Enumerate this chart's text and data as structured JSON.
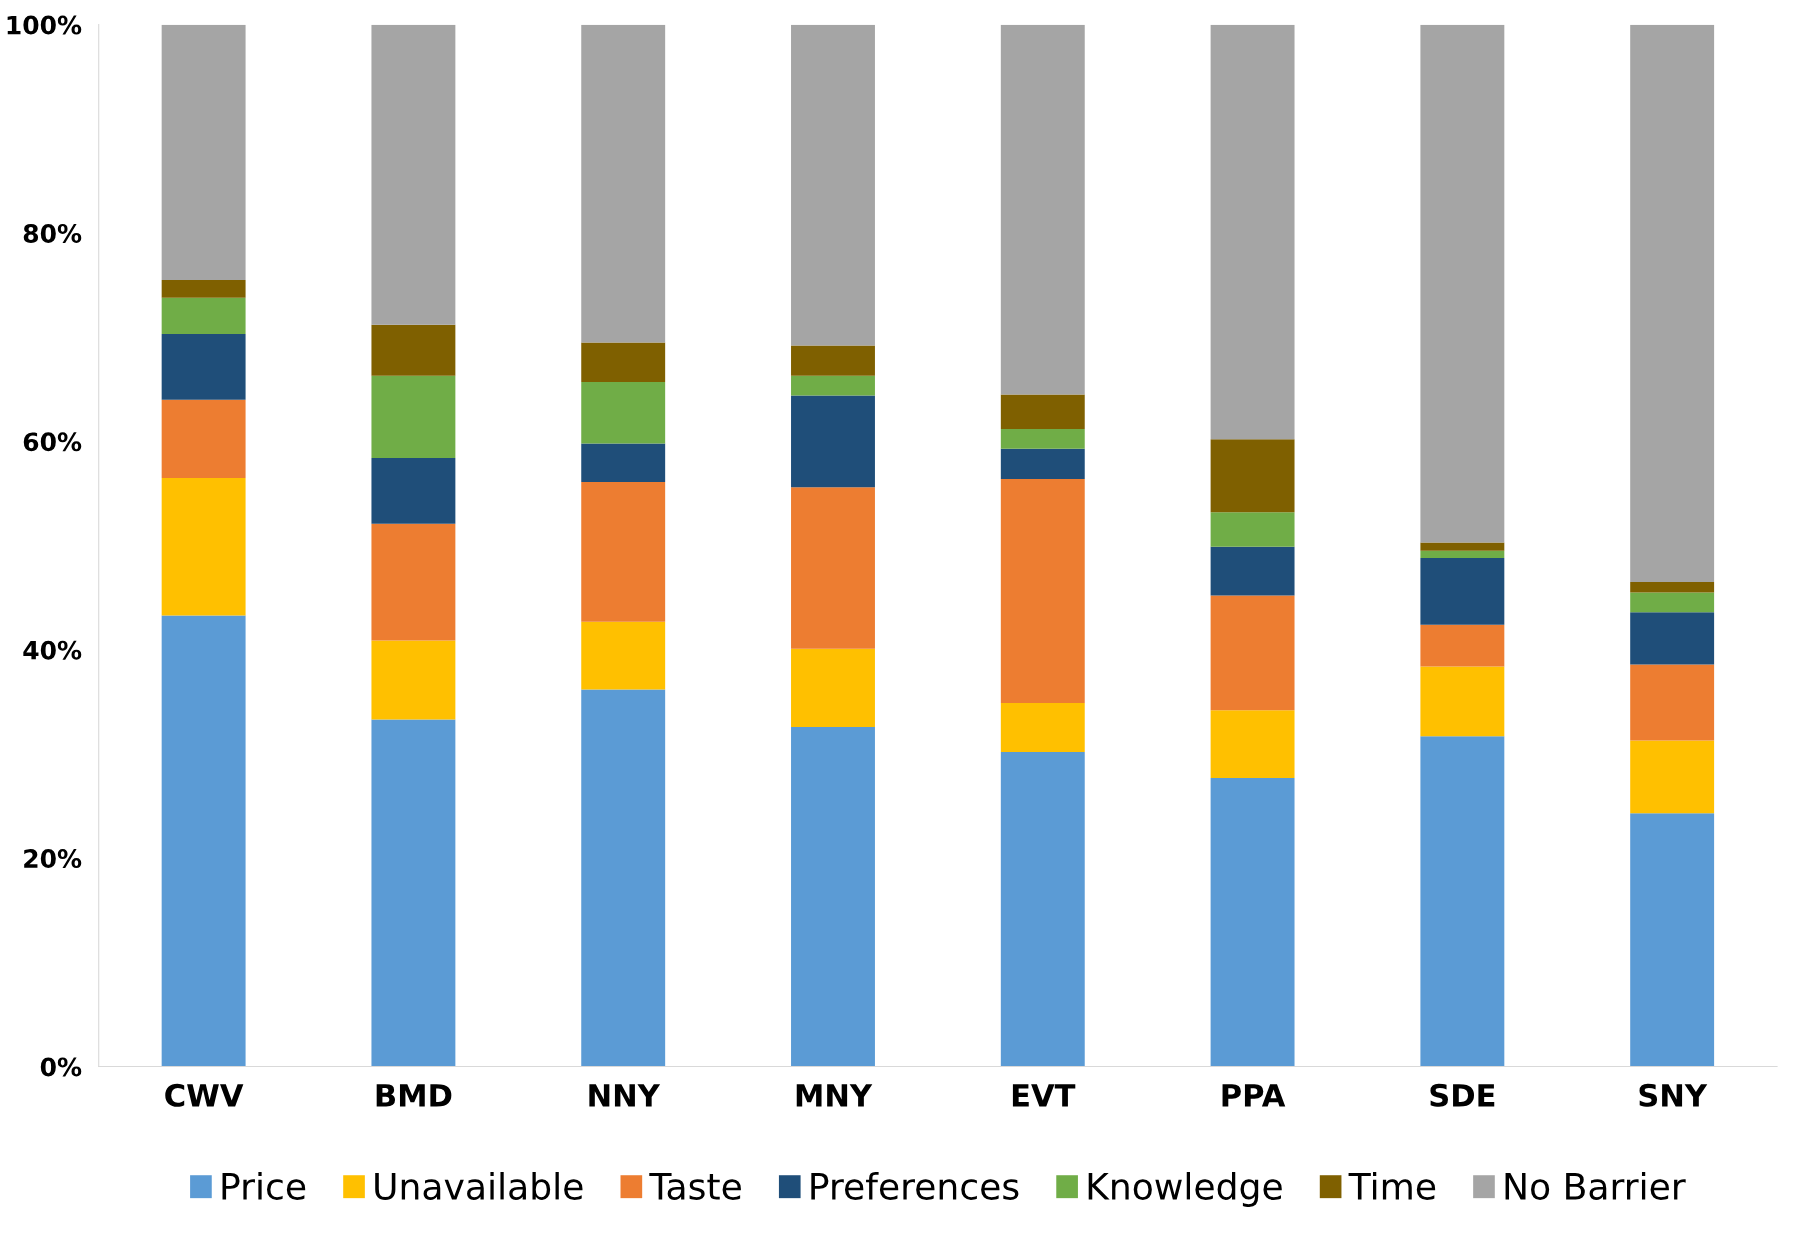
{
  "chart_data": {
    "type": "bar",
    "stacked": true,
    "categories": [
      "CWV",
      "BMD",
      "NNY",
      "MNY",
      "EVT",
      "PPA",
      "SDE",
      "SNY"
    ],
    "series": [
      {
        "name": "Price",
        "color": "#5b9bd5",
        "values": [
          43.3,
          33.3,
          36.2,
          32.6,
          30.2,
          27.7,
          31.7,
          24.3
        ]
      },
      {
        "name": "Unavailable",
        "color": "#ffc000",
        "values": [
          13.2,
          7.6,
          6.5,
          7.5,
          4.7,
          6.5,
          6.7,
          7.0
        ]
      },
      {
        "name": "Taste",
        "color": "#ed7d31",
        "values": [
          7.5,
          11.2,
          13.4,
          15.5,
          21.5,
          11.0,
          4.0,
          7.3
        ]
      },
      {
        "name": "Preferences",
        "color": "#1f4e79",
        "values": [
          6.3,
          6.3,
          3.7,
          8.8,
          2.9,
          4.7,
          6.4,
          5.0
        ]
      },
      {
        "name": "Knowledge",
        "color": "#70ad47",
        "values": [
          3.5,
          7.9,
          5.9,
          1.9,
          1.9,
          3.3,
          0.7,
          1.9
        ]
      },
      {
        "name": "Time",
        "color": "#7f6000",
        "values": [
          1.7,
          4.9,
          3.8,
          2.9,
          3.3,
          7.0,
          0.8,
          1.0
        ]
      },
      {
        "name": "No Barrier",
        "color": "#a5a5a5",
        "values": [
          24.5,
          28.8,
          30.5,
          30.8,
          35.5,
          39.8,
          49.7,
          53.5
        ]
      }
    ],
    "ylim": [
      0,
      100
    ],
    "yticks": [
      {
        "value": 0,
        "label": "0%"
      },
      {
        "value": 20,
        "label": "20%"
      },
      {
        "value": 40,
        "label": "40%"
      },
      {
        "value": 60,
        "label": "60%"
      },
      {
        "value": 80,
        "label": "80%"
      },
      {
        "value": 100,
        "label": "100%"
      }
    ],
    "grid": false,
    "legend": "bottom"
  }
}
